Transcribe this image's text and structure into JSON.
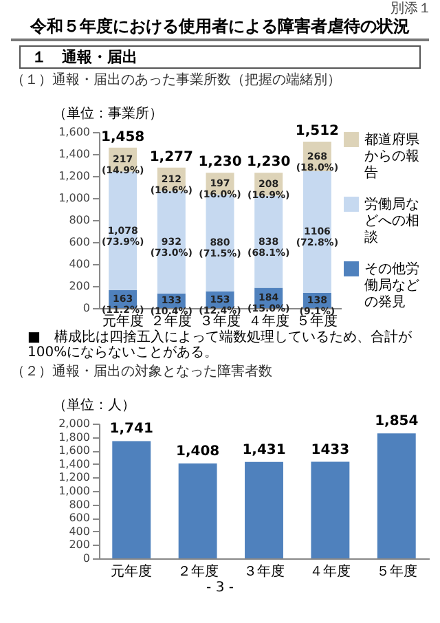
{
  "chart_data": [
    {
      "type": "bar",
      "title": "令和５年度における使用者による障害者虐待の状況",
      "subtitle": "（１）通報・届出のあった事業所数（把握の端緒別）",
      "ylabel": "（単位：事業所）",
      "annotations": [
        "別添１",
        "１　通報・届出",
        "■　構成比は四捨五入によって端数処理しているため、合計が100%にならないことがある。"
      ],
      "categories": [
        "元年度",
        "２年度",
        "３年度",
        "４年度",
        "５年度"
      ],
      "stacked": true,
      "legend": "right",
      "series": [
        {
          "name": "その他労働局などの発見",
          "color": "#4f81bd",
          "values": [
            163,
            133,
            153,
            184,
            138
          ],
          "value_labels": [
            "163 (11.2%)",
            "133 (10.4%)",
            "153 (12.4%)",
            "184 (15.0%)",
            "138 (9.1%)"
          ]
        },
        {
          "name": "労働局などへの相談",
          "color": "#c6d9f0",
          "values": [
            1078,
            932,
            880,
            838,
            1106
          ],
          "value_labels": [
            "1,078 (73.9%)",
            "932 (73.0%)",
            "880 (71.5%)",
            "838 (68.1%)",
            "1106 (72.8%)"
          ]
        },
        {
          "name": "都道府県からの報告",
          "color": "#ddd3b8",
          "values": [
            217,
            212,
            197,
            208,
            268
          ],
          "value_labels": [
            "217 (14.9%)",
            "212 (16.6%)",
            "197 (16.0%)",
            "208 (16.9%)",
            "268 (18.0%)"
          ]
        }
      ],
      "totals": [
        "1,458",
        "1,277",
        "1,230",
        "1,230",
        "1,512"
      ],
      "ylim": [
        0,
        1600
      ],
      "yticks": [
        0,
        200,
        400,
        600,
        800,
        {
          "value": 1000,
          "label": "1,000"
        },
        {
          "value": 1200,
          "label": "1,200"
        },
        {
          "value": 1400,
          "label": "1,400"
        },
        {
          "value": 1600,
          "label": "1,600"
        }
      ]
    },
    {
      "type": "bar",
      "title": "（２）通報・届出の対象となった障害者数",
      "ylabel": "（単位：人）",
      "annotations": [
        "- 3 -"
      ],
      "categories": [
        "元年度",
        "２年度",
        "３年度",
        "４年度",
        "５年度"
      ],
      "values": [
        1741,
        1408,
        1431,
        1433,
        1854
      ],
      "color": "#4f81bd",
      "value_labels": [
        "1,741",
        "1,408",
        "1,431",
        "1433",
        "1,854"
      ],
      "ylim": [
        0,
        2000
      ],
      "yticks": [
        0,
        200,
        400,
        600,
        800,
        {
          "value": 1000,
          "label": "1,000"
        },
        {
          "value": 1200,
          "label": "1,200"
        },
        {
          "value": 1400,
          "label": "1,400"
        },
        {
          "value": 1600,
          "label": "1,600"
        },
        {
          "value": 1800,
          "label": "1,800"
        },
        {
          "value": 2000,
          "label": "2,000"
        }
      ]
    }
  ]
}
